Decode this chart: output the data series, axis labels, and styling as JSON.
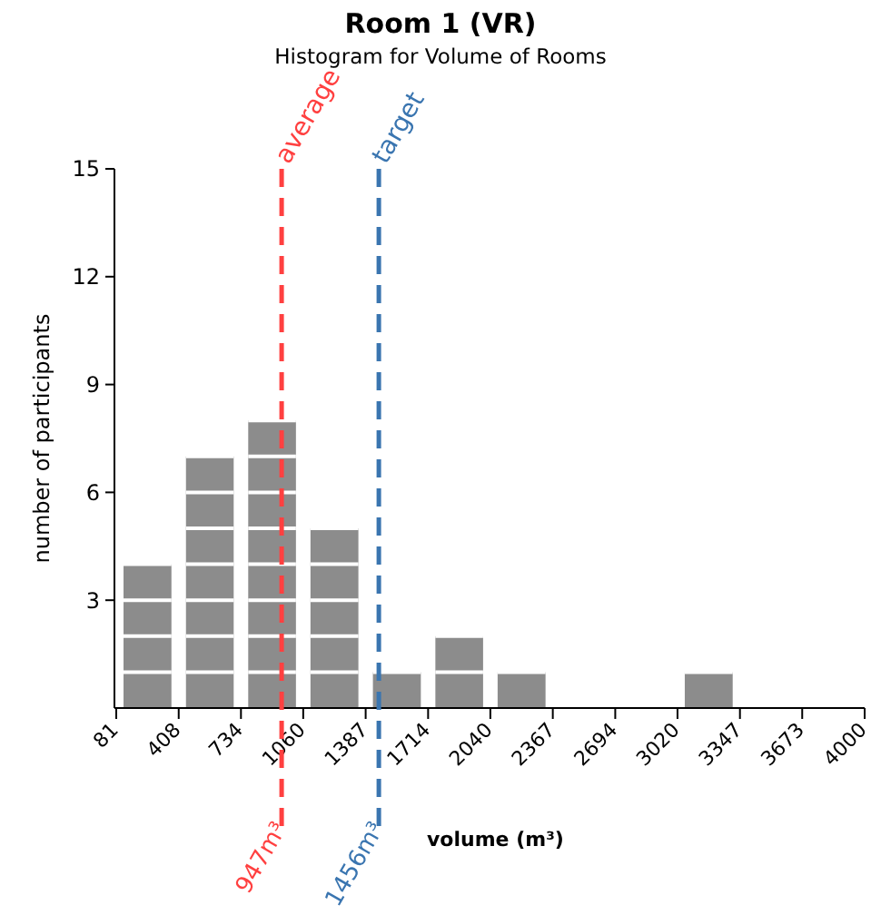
{
  "chart_data": {
    "type": "histogram",
    "title": "Room 1 (VR)",
    "subtitle": "Histogram for Volume of Rooms",
    "xlabel": "volume (m³)",
    "ylabel": "number of participants",
    "bins": [
      81,
      408,
      734,
      1060,
      1387,
      1714,
      2040,
      2367,
      2694,
      3020,
      3347,
      3673,
      4000
    ],
    "values": [
      4,
      7,
      8,
      5,
      1,
      2,
      1,
      0,
      0,
      1,
      0,
      0
    ],
    "color": "#8c8c8c",
    "xlim": [
      81,
      4000
    ],
    "xticks": [
      81,
      408,
      734,
      1060,
      1387,
      1714,
      2040,
      2367,
      2694,
      3020,
      3347,
      3673,
      4000
    ],
    "ylim": [
      0,
      15
    ],
    "yticks": [
      3,
      6,
      9,
      12,
      15
    ],
    "ref_lines": [
      {
        "axis": "x",
        "value": 947,
        "label": "average",
        "color": "#ff4040",
        "line_style": "dashed"
      },
      {
        "axis": "x",
        "value": 1456,
        "label": "target",
        "color": "#3a75b0",
        "line_style": "dashed"
      }
    ],
    "annotations": [
      "947m³",
      "1456m³"
    ]
  }
}
